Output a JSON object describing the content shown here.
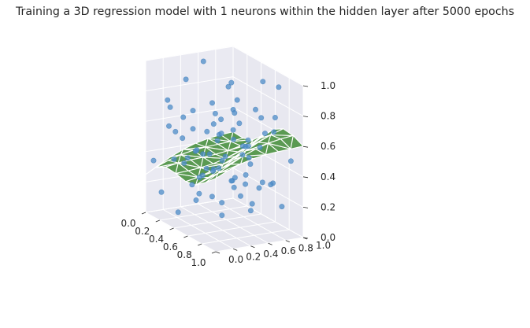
{
  "chart_data": {
    "type": "scatter3d",
    "title": "Training a 3D regression model with 1 neurons within the hidden layer after 5000 epochs",
    "xlabel": "",
    "ylabel": "",
    "zlabel": "",
    "xlim": [
      0,
      1
    ],
    "ylim": [
      0,
      1
    ],
    "zlim": [
      0,
      1
    ],
    "x_ticks": [
      "0.0",
      "0.2",
      "0.4",
      "0.6",
      "0.8",
      "1.0"
    ],
    "y_ticks": [
      "0.0",
      "0.2",
      "0.4",
      "0.6",
      "0.8",
      "1.0"
    ],
    "z_ticks": [
      "0.0",
      "0.2",
      "0.4",
      "0.6",
      "0.8",
      "1.0"
    ],
    "grid": true,
    "points_color": "#4c8cc8",
    "surface_color": "#5a9a52",
    "surface_edge_color": "#ffffff",
    "pane_color": "#eaeaf2",
    "points": [
      [
        0.05,
        0.62,
        0.95
      ],
      [
        0.12,
        0.85,
        0.78
      ],
      [
        0.2,
        0.3,
        0.9
      ],
      [
        0.35,
        0.7,
        0.88
      ],
      [
        0.55,
        0.9,
        0.92
      ],
      [
        0.8,
        0.88,
        0.95
      ],
      [
        0.62,
        0.55,
        0.85
      ],
      [
        0.45,
        0.4,
        0.8
      ],
      [
        0.1,
        0.2,
        0.7
      ],
      [
        0.3,
        0.1,
        0.6
      ],
      [
        0.9,
        0.6,
        0.8
      ],
      [
        0.72,
        0.2,
        0.75
      ],
      [
        0.95,
        0.35,
        0.65
      ],
      [
        0.25,
        0.5,
        0.55
      ],
      [
        0.4,
        0.85,
        0.5
      ],
      [
        0.6,
        0.7,
        0.45
      ],
      [
        0.82,
        0.45,
        0.55
      ],
      [
        0.15,
        0.45,
        0.4
      ],
      [
        0.5,
        0.25,
        0.35
      ],
      [
        0.7,
        0.05,
        0.3
      ],
      [
        0.05,
        0.4,
        0.3
      ],
      [
        0.35,
        0.25,
        0.25
      ],
      [
        0.88,
        0.75,
        0.35
      ],
      [
        0.55,
        0.55,
        0.3
      ],
      [
        0.2,
        0.75,
        0.35
      ],
      [
        0.65,
        0.35,
        0.2
      ],
      [
        0.45,
        0.65,
        0.22
      ],
      [
        0.1,
        0.1,
        0.15
      ],
      [
        0.9,
        0.15,
        0.2
      ],
      [
        0.3,
        0.9,
        0.18
      ],
      [
        0.75,
        0.6,
        0.15
      ],
      [
        0.4,
        0.05,
        0.1
      ],
      [
        0.05,
        0.8,
        0.45
      ],
      [
        0.95,
        0.9,
        0.5
      ],
      [
        0.58,
        0.12,
        0.55
      ],
      [
        0.22,
        0.62,
        0.65
      ],
      [
        0.68,
        0.82,
        0.62
      ],
      [
        0.85,
        0.3,
        0.4
      ],
      [
        0.15,
        0.3,
        0.5
      ],
      [
        0.48,
        0.48,
        0.6
      ],
      [
        0.38,
        0.35,
        0.45
      ],
      [
        0.78,
        0.52,
        0.4
      ],
      [
        0.28,
        0.78,
        0.48
      ],
      [
        0.62,
        0.28,
        0.42
      ],
      [
        0.52,
        0.78,
        0.38
      ],
      [
        0.08,
        0.55,
        0.2
      ],
      [
        0.92,
        0.48,
        0.25
      ],
      [
        0.32,
        0.58,
        0.32
      ],
      [
        0.72,
        0.72,
        0.28
      ],
      [
        0.18,
        0.18,
        0.38
      ],
      [
        0.42,
        0.92,
        0.7
      ],
      [
        0.98,
        0.68,
        0.72
      ],
      [
        0.02,
        0.25,
        0.55
      ],
      [
        0.6,
        0.95,
        0.25
      ],
      [
        0.85,
        0.05,
        0.6
      ],
      [
        0.25,
        0.05,
        0.8
      ],
      [
        0.5,
        0.6,
        0.75
      ],
      [
        0.75,
        0.4,
        0.7
      ],
      [
        0.12,
        0.92,
        0.6
      ],
      [
        0.95,
        0.1,
        0.85
      ],
      [
        0.35,
        0.48,
        0.15
      ],
      [
        0.55,
        0.38,
        0.58
      ],
      [
        0.68,
        0.15,
        0.45
      ],
      [
        0.45,
        0.18,
        0.65
      ],
      [
        0.82,
        0.65,
        0.58
      ],
      [
        0.22,
        0.4,
        0.1
      ],
      [
        0.65,
        0.5,
        0.35
      ],
      [
        0.3,
        0.3,
        0.72
      ],
      [
        0.88,
        0.38,
        0.3
      ],
      [
        0.05,
        0.05,
        0.35
      ],
      [
        0.58,
        0.68,
        0.52
      ],
      [
        0.4,
        0.75,
        0.62
      ],
      [
        0.78,
        0.25,
        0.52
      ],
      [
        0.15,
        0.65,
        0.25
      ],
      [
        0.98,
        0.55,
        0.4
      ],
      [
        0.5,
        0.08,
        0.48
      ],
      [
        0.28,
        0.95,
        0.42
      ],
      [
        0.7,
        0.92,
        0.72
      ],
      [
        0.1,
        0.35,
        0.62
      ],
      [
        0.92,
        0.82,
        0.2
      ]
    ]
  }
}
